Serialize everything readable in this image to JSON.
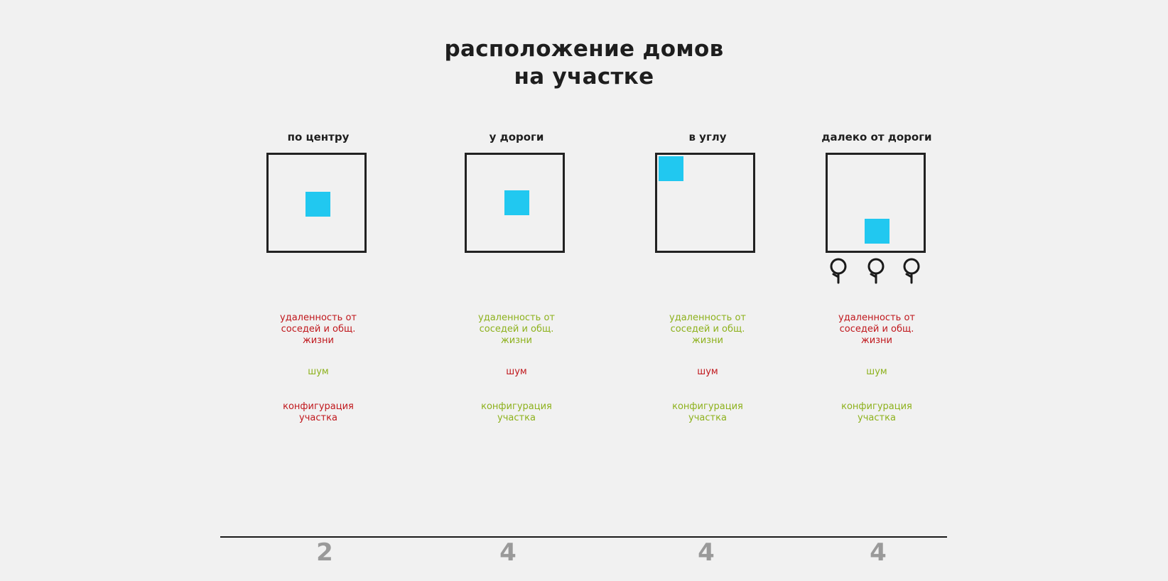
{
  "title": {
    "line1": "расположение домов",
    "line2": "на участке"
  },
  "colors": {
    "background": "#f1f1f1",
    "house": "#21c8f0",
    "negative": "#c0171c",
    "positive": "#8db11c",
    "score": "#9a9a9a"
  },
  "columns": [
    {
      "heading": "по центру",
      "criteria": {
        "distance": {
          "text": "удаленность от соседей и общ. жизни",
          "line1": "удаленность от",
          "line2": "соседей и общ.",
          "line3": "жизни",
          "rating": "negative"
        },
        "noise": {
          "text": "шум",
          "rating": "positive"
        },
        "configuration": {
          "text": "конфигурация участка",
          "line1": "конфигурация",
          "line2": "участка",
          "rating": "negative"
        }
      },
      "score": "2"
    },
    {
      "heading": "у дороги",
      "criteria": {
        "distance": {
          "text": "удаленность от соседей и общ. жизни",
          "line1": "удаленность от",
          "line2": "соседей и общ.",
          "line3": "жизни",
          "rating": "positive"
        },
        "noise": {
          "text": "шум",
          "rating": "negative"
        },
        "configuration": {
          "text": "конфигурация участка",
          "line1": "конфигурация",
          "line2": "участка",
          "rating": "positive"
        }
      },
      "score": "4"
    },
    {
      "heading": "в углу",
      "criteria": {
        "distance": {
          "text": "удаленность от соседей и общ. жизни",
          "line1": "удаленность от",
          "line2": "соседей и общ.",
          "line3": "жизни",
          "rating": "positive"
        },
        "noise": {
          "text": "шум",
          "rating": "negative"
        },
        "configuration": {
          "text": "конфигурация участка",
          "line1": "конфигурация",
          "line2": "участка",
          "rating": "positive"
        }
      },
      "score": "4"
    },
    {
      "heading": "далеко от дороги",
      "criteria": {
        "distance": {
          "text": "удаленность от соседей и общ. жизни",
          "line1": "удаленность от",
          "line2": "соседей и общ.",
          "line3": "жизни",
          "rating": "negative"
        },
        "noise": {
          "text": "шум",
          "rating": "positive"
        },
        "configuration": {
          "text": "конфигурация участка",
          "line1": "конфигурация",
          "line2": "участка",
          "rating": "positive"
        }
      },
      "score": "4"
    }
  ],
  "icons": {
    "tree": "tree-icon"
  }
}
